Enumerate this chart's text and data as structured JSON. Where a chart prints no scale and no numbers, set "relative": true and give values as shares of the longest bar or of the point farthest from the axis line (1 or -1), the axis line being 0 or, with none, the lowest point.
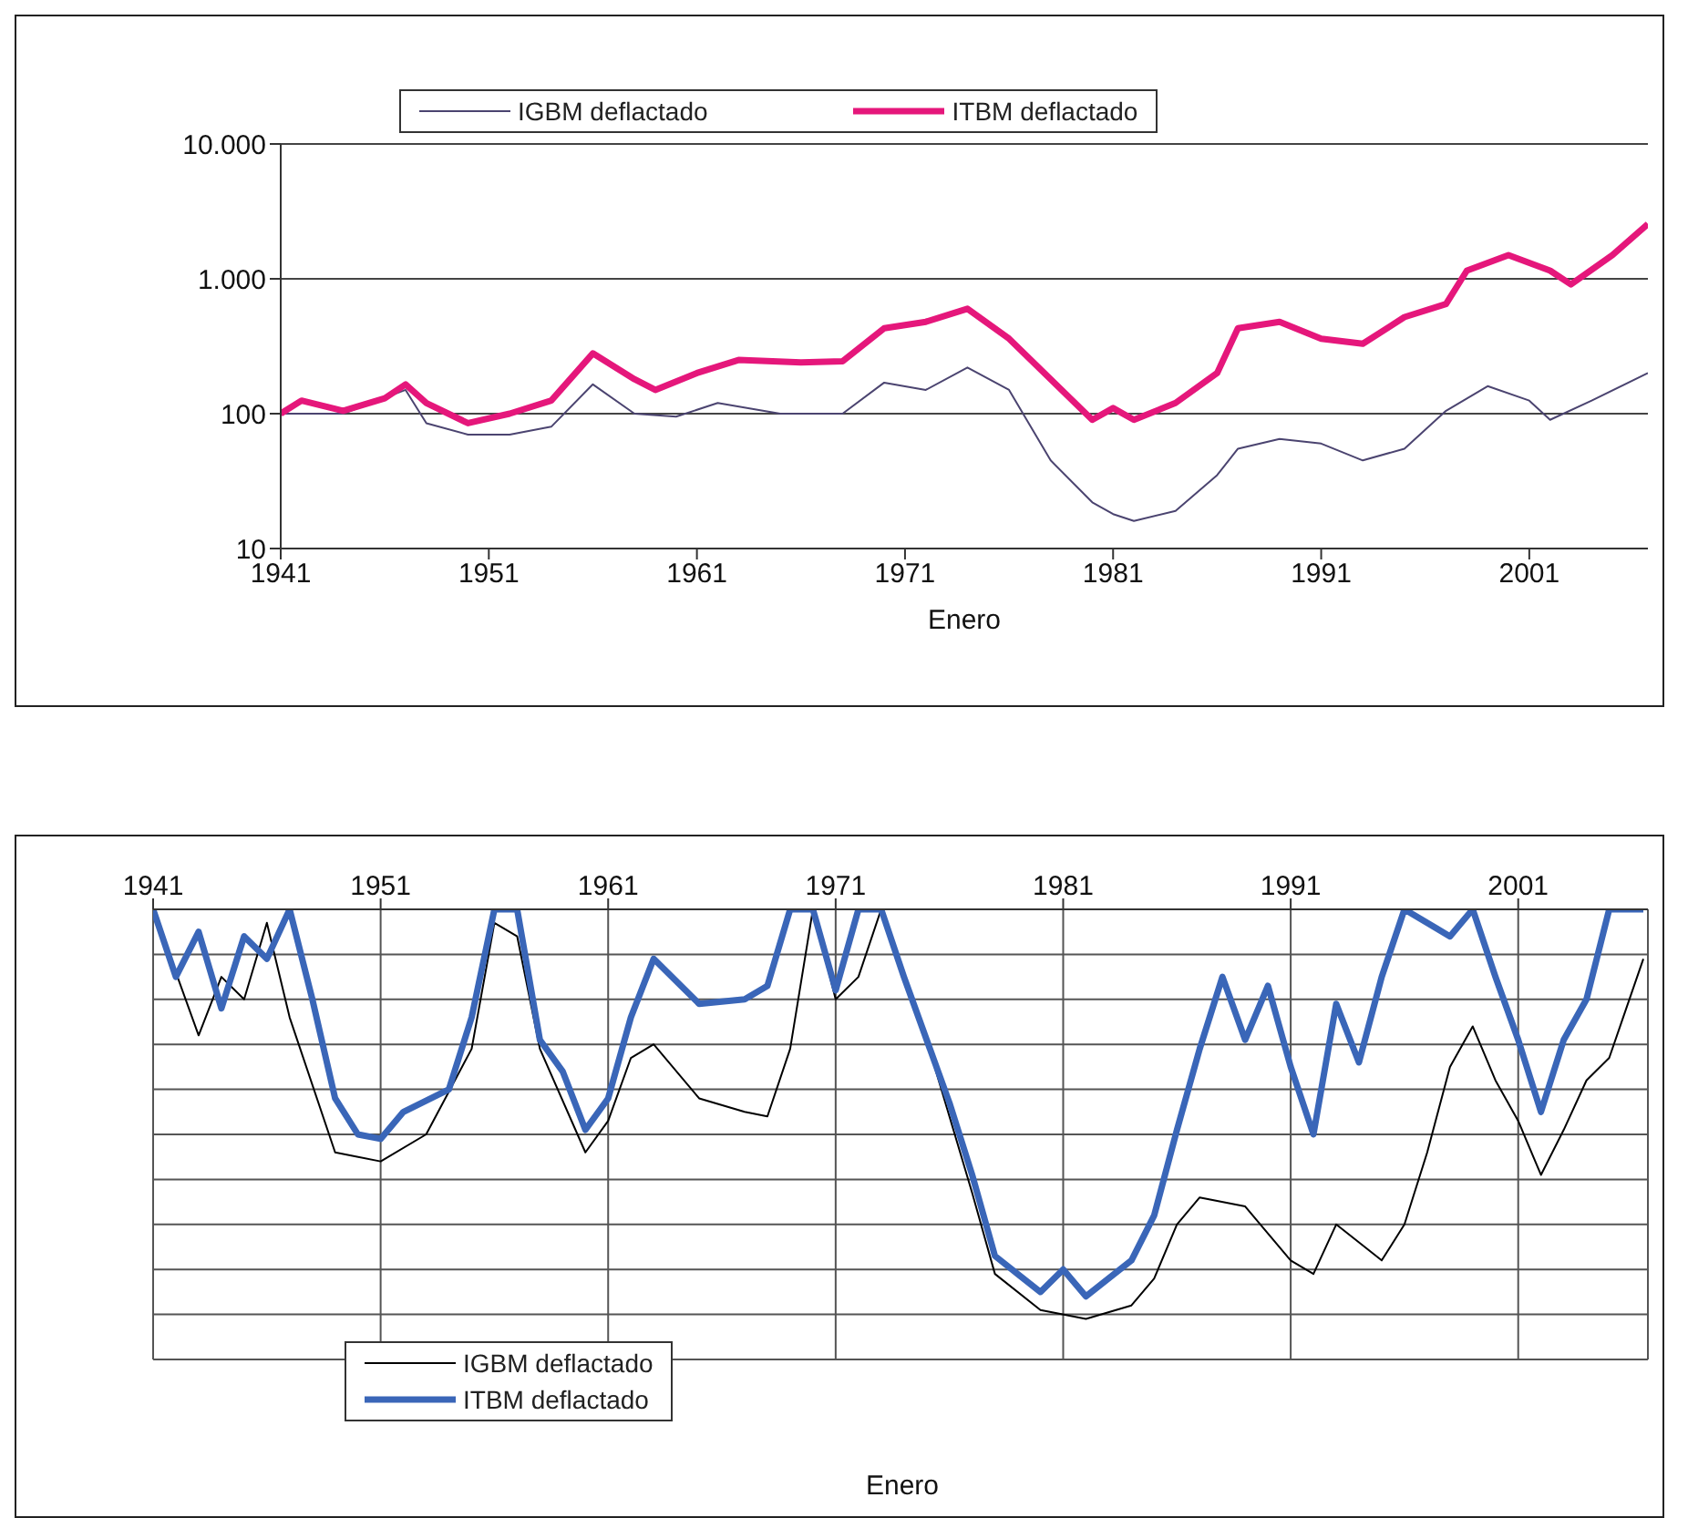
{
  "chart_data": [
    {
      "type": "line",
      "xlabel": "Enero",
      "log": "y",
      "grid": "y",
      "legend": "top",
      "xlim": [
        1941,
        2006.7
      ],
      "xticks": [
        1941,
        1951,
        1961,
        1971,
        1981,
        1991,
        2001
      ],
      "ylim": [
        10,
        10000
      ],
      "yticks": [
        {
          "value": 10,
          "label": "10"
        },
        {
          "value": 100,
          "label": "100"
        },
        {
          "value": 1000,
          "label": "1.000"
        },
        {
          "value": 10000,
          "label": "10.000"
        }
      ],
      "series": [
        {
          "name": "IGBM deflactado",
          "color": "#4b4470",
          "x": [
            1941,
            1944,
            1947,
            1948,
            1950,
            1952,
            1954,
            1956,
            1958,
            1960,
            1962,
            1965,
            1968,
            1970,
            1972,
            1974,
            1976,
            1978,
            1980,
            1981,
            1982,
            1984,
            1986,
            1987,
            1989,
            1991,
            1993,
            1995,
            1997,
            1999,
            2001,
            2002,
            2004,
            2006.7
          ],
          "values": [
            100,
            100,
            150,
            85,
            70,
            70,
            80,
            165,
            100,
            95,
            120,
            100,
            100,
            170,
            150,
            220,
            150,
            45,
            22,
            18,
            16,
            19,
            35,
            55,
            65,
            60,
            45,
            55,
            105,
            160,
            125,
            90,
            125,
            200
          ]
        },
        {
          "name": "ITBM deflactado",
          "color": "#e5177b",
          "x": [
            1941,
            1942,
            1944,
            1946,
            1947,
            1948,
            1950,
            1952,
            1954,
            1956,
            1958,
            1959,
            1961,
            1963,
            1966,
            1968,
            1970,
            1972,
            1974,
            1976,
            1978,
            1980,
            1981,
            1982,
            1984,
            1986,
            1987,
            1989,
            1991,
            1993,
            1995,
            1997,
            1998,
            2000,
            2002,
            2003,
            2005,
            2006.7
          ],
          "values": [
            100,
            125,
            105,
            130,
            165,
            120,
            85,
            100,
            125,
            280,
            180,
            150,
            200,
            250,
            240,
            245,
            430,
            480,
            600,
            360,
            180,
            90,
            110,
            90,
            120,
            200,
            430,
            480,
            360,
            330,
            520,
            650,
            1150,
            1500,
            1150,
            910,
            1500,
            2550
          ]
        }
      ]
    },
    {
      "type": "line",
      "xlabel": "Enero",
      "relative": true,
      "grid": true,
      "legend": "bottom left",
      "xlim": [
        1941,
        2006.7
      ],
      "xticks": [
        1941,
        1951,
        1961,
        1971,
        1981,
        1991,
        2001
      ],
      "series": [
        {
          "name": "IGBM deflactado",
          "color": "#000000",
          "x": [
            1941,
            1943,
            1944,
            1945,
            1946,
            1947,
            1949,
            1951,
            1953,
            1955,
            1956,
            1957,
            1958,
            1960,
            1961,
            1962,
            1963,
            1965,
            1967,
            1968,
            1969,
            1970,
            1971,
            1972,
            1973,
            1974,
            1975,
            1977,
            1978,
            1980,
            1982,
            1984,
            1985,
            1986,
            1987,
            1989,
            1991,
            1992,
            1993,
            1995,
            1996,
            1997,
            1998,
            1999,
            2000,
            2001,
            2002,
            2003,
            2004,
            2005,
            2006.5
          ],
          "values": [
            1.0,
            0.72,
            0.85,
            0.8,
            0.97,
            0.76,
            0.46,
            0.44,
            0.5,
            0.69,
            0.97,
            0.94,
            0.69,
            0.46,
            0.53,
            0.67,
            0.7,
            0.58,
            0.55,
            0.54,
            0.69,
            1.0,
            0.8,
            0.85,
            1.0,
            0.85,
            0.71,
            0.37,
            0.19,
            0.11,
            0.09,
            0.12,
            0.18,
            0.3,
            0.36,
            0.34,
            0.22,
            0.19,
            0.3,
            0.22,
            0.3,
            0.46,
            0.65,
            0.74,
            0.62,
            0.53,
            0.41,
            0.51,
            0.62,
            0.67,
            0.89
          ]
        },
        {
          "name": "ITBM deflactado",
          "color": "#3a66b8",
          "x": [
            1941,
            1942,
            1943,
            1944,
            1945,
            1946,
            1947,
            1948,
            1949,
            1950,
            1951,
            1952,
            1954,
            1955,
            1956,
            1957,
            1958,
            1959,
            1960,
            1961,
            1962,
            1963,
            1965,
            1967,
            1968,
            1969,
            1970,
            1971,
            1972,
            1973,
            1974,
            1975,
            1976,
            1977,
            1978,
            1979,
            1980,
            1981,
            1982,
            1984,
            1985,
            1986,
            1987,
            1988,
            1989,
            1990,
            1991,
            1992,
            1993,
            1994,
            1995,
            1996,
            1998,
            1999,
            2000,
            2001,
            2002,
            2003,
            2004,
            2005,
            2006.5
          ],
          "values": [
            1.0,
            0.85,
            0.95,
            0.78,
            0.94,
            0.89,
            1.0,
            0.8,
            0.58,
            0.5,
            0.49,
            0.55,
            0.6,
            0.76,
            1.0,
            1.0,
            0.71,
            0.64,
            0.51,
            0.58,
            0.76,
            0.89,
            0.79,
            0.8,
            0.83,
            1.0,
            1.0,
            0.82,
            1.0,
            1.0,
            0.85,
            0.71,
            0.57,
            0.41,
            0.23,
            0.19,
            0.15,
            0.2,
            0.14,
            0.22,
            0.32,
            0.51,
            0.69,
            0.85,
            0.71,
            0.83,
            0.65,
            0.5,
            0.79,
            0.66,
            0.85,
            1.0,
            0.94,
            1.0,
            0.85,
            0.71,
            0.55,
            0.71,
            0.8,
            1.0,
            1.0
          ]
        }
      ]
    }
  ]
}
